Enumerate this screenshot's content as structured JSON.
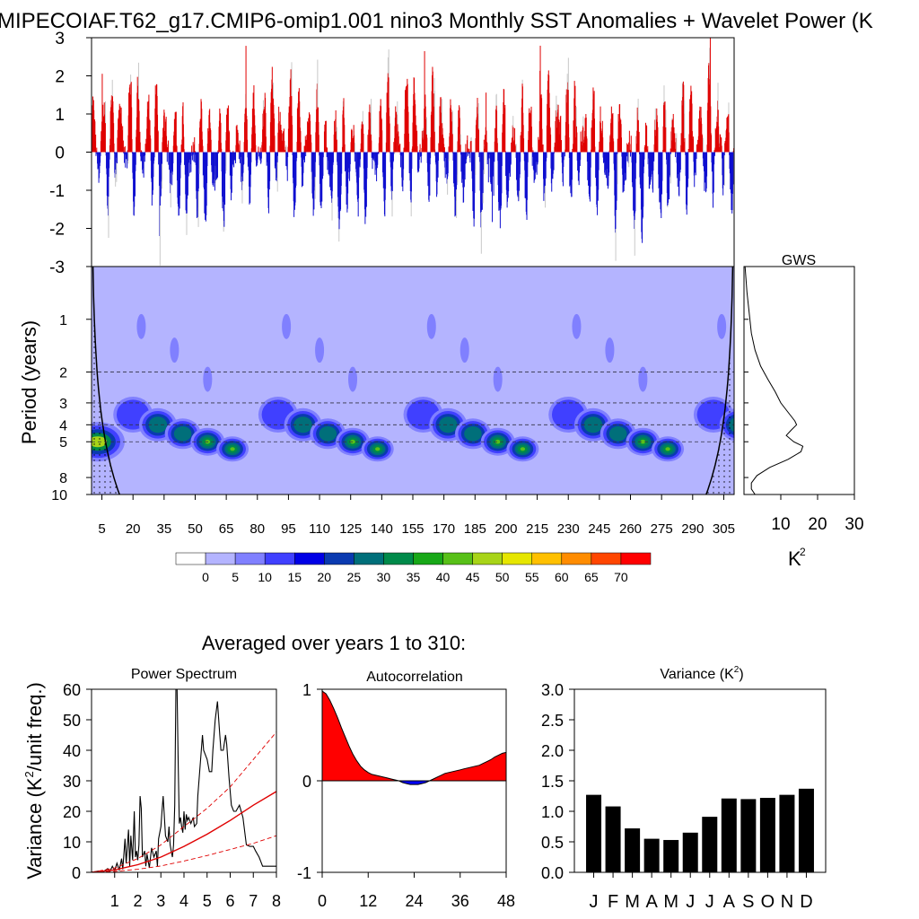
{
  "page_title": "MIPECOIAF.T62_g17.CMIP6-omip1.001 nino3 Monthly SST Anomalies + Wavelet Power (K",
  "averaged_label": "Averaged over years 1 to 310:",
  "chart_data": [
    {
      "id": "anomaly_timeseries",
      "type": "bar",
      "title": "MIPECOIAF.T62_g17.CMIP6-omip1.001 nino3 Monthly SST Anomalies + Wavelet Power (K",
      "ylim": [
        -3,
        3
      ],
      "yticks": [
        -3,
        -2,
        -1,
        0,
        1,
        2,
        3
      ],
      "xlim": [
        0,
        310
      ],
      "positive_color": "#e00000",
      "negative_color": "#1010d0",
      "note_colors": {
        "background_bars": "#c8c8c8"
      }
    },
    {
      "id": "wavelet_power",
      "type": "heatmap",
      "ylabel": "Period (years)",
      "xlim": [
        0,
        310
      ],
      "ylim_period": [
        0.5,
        10
      ],
      "log_y": true,
      "yticks": [
        1,
        2,
        3,
        4,
        5,
        8,
        10
      ],
      "xticks": [
        5,
        20,
        35,
        50,
        65,
        80,
        95,
        110,
        125,
        140,
        155,
        170,
        185,
        200,
        215,
        230,
        245,
        260,
        275,
        290,
        305
      ],
      "dashed_periods": [
        2,
        3,
        4,
        5
      ],
      "colorbar_levels": [
        "0",
        "5",
        "10",
        "15",
        "20",
        "25",
        "30",
        "35",
        "40",
        "45",
        "50",
        "55",
        "60",
        "65",
        "70"
      ],
      "colorbar_colors": [
        "#ffffff",
        "#b4b4ff",
        "#8080ff",
        "#4040ff",
        "#0000e6",
        "#0a3ab0",
        "#006f7a",
        "#008a4a",
        "#18a818",
        "#58c018",
        "#a8d418",
        "#e6e600",
        "#ffc000",
        "#ff8c00",
        "#ff4600",
        "#ff0000"
      ],
      "hotspot_periods": [
        3.5,
        4.0,
        4.5,
        5.0,
        5.5
      ],
      "hotspot_cycle_years": 70
    },
    {
      "id": "gws",
      "type": "line",
      "title": "GWS",
      "xlabel": "K",
      "xlabel_superscript": "2",
      "xticks": [
        10,
        20,
        30
      ],
      "xlim": [
        0,
        30
      ],
      "log_y": true,
      "ylim_period": [
        0.5,
        10
      ],
      "points": [
        [
          0.3,
          0.5
        ],
        [
          0.8,
          0.7
        ],
        [
          1.5,
          0.95
        ],
        [
          2.0,
          1.2
        ],
        [
          3.0,
          1.5
        ],
        [
          4.5,
          1.85
        ],
        [
          6.5,
          2.2
        ],
        [
          8.5,
          2.6
        ],
        [
          10.0,
          3.0
        ],
        [
          12.0,
          3.4
        ],
        [
          13.8,
          3.8
        ],
        [
          14.3,
          4.0
        ],
        [
          12.8,
          4.3
        ],
        [
          11.5,
          4.6
        ],
        [
          13.5,
          5.0
        ],
        [
          16.0,
          5.3
        ],
        [
          15.5,
          5.7
        ],
        [
          12.0,
          6.3
        ],
        [
          7.0,
          7.0
        ],
        [
          3.5,
          7.8
        ],
        [
          2.0,
          8.6
        ],
        [
          2.0,
          9.3
        ],
        [
          3.0,
          10.0
        ]
      ]
    },
    {
      "id": "power_spectrum",
      "type": "line",
      "title": "Power Spectrum",
      "ylabel": "Variance (K",
      "ylabel_superscript": "2",
      "ylabel_suffix": "/unit freq.)",
      "xlim": [
        0,
        8
      ],
      "ylim": [
        0,
        60
      ],
      "xticks": [
        1,
        2,
        3,
        4,
        5,
        6,
        7,
        8
      ],
      "yticks": [
        0,
        10,
        20,
        30,
        40,
        50,
        60
      ],
      "series": [
        {
          "style": "black",
          "points": [
            [
              0.0,
              0
            ],
            [
              0.3,
              0.4
            ],
            [
              0.5,
              0.2
            ],
            [
              0.7,
              1.2
            ],
            [
              0.8,
              0.3
            ],
            [
              0.9,
              2.0
            ],
            [
              1.0,
              0.6
            ],
            [
              1.1,
              3.0
            ],
            [
              1.2,
              0.8
            ],
            [
              1.3,
              4.5
            ],
            [
              1.35,
              1.0
            ],
            [
              1.45,
              11.0
            ],
            [
              1.5,
              3.0
            ],
            [
              1.6,
              14.0
            ],
            [
              1.65,
              2.0
            ],
            [
              1.7,
              12.0
            ],
            [
              1.78,
              4.0
            ],
            [
              1.85,
              20.0
            ],
            [
              1.9,
              5.0
            ],
            [
              1.95,
              7.0
            ],
            [
              2.0,
              4.0
            ],
            [
              2.05,
              9.0
            ],
            [
              2.1,
              25.0
            ],
            [
              2.15,
              21.0
            ],
            [
              2.2,
              5.0
            ],
            [
              2.3,
              7.0
            ],
            [
              2.35,
              2.0
            ],
            [
              2.4,
              6.0
            ],
            [
              2.5,
              1.5
            ],
            [
              2.6,
              8.0
            ],
            [
              2.7,
              5.0
            ],
            [
              2.8,
              7.0
            ],
            [
              2.85,
              2.0
            ],
            [
              2.9,
              11.0
            ],
            [
              3.0,
              15.0
            ],
            [
              3.05,
              20.0
            ],
            [
              3.1,
              25.0
            ],
            [
              3.2,
              12.0
            ],
            [
              3.3,
              10.0
            ],
            [
              3.35,
              15.0
            ],
            [
              3.4,
              9.0
            ],
            [
              3.45,
              7.0
            ],
            [
              3.5,
              5.0
            ],
            [
              3.55,
              9.0
            ],
            [
              3.6,
              22.0
            ],
            [
              3.65,
              60.0
            ],
            [
              3.7,
              60.0
            ],
            [
              3.75,
              35.0
            ],
            [
              3.8,
              16.0
            ],
            [
              3.85,
              18.0
            ],
            [
              3.9,
              15.0
            ],
            [
              3.95,
              13.0
            ],
            [
              4.0,
              20.0
            ],
            [
              4.05,
              14.0
            ],
            [
              4.1,
              19.0
            ],
            [
              4.15,
              17.0
            ],
            [
              4.2,
              18.0
            ],
            [
              4.3,
              16.0
            ],
            [
              4.4,
              18.0
            ],
            [
              4.45,
              15.0
            ],
            [
              4.55,
              16.0
            ],
            [
              4.6,
              25.0
            ],
            [
              4.7,
              35.0
            ],
            [
              4.8,
              45.0
            ],
            [
              4.85,
              40.0
            ],
            [
              4.95,
              38.0
            ],
            [
              5.0,
              37.0
            ],
            [
              5.1,
              33.0
            ],
            [
              5.2,
              33.0
            ],
            [
              5.25,
              40.0
            ],
            [
              5.35,
              50.0
            ],
            [
              5.45,
              56.0
            ],
            [
              5.55,
              45.0
            ],
            [
              5.6,
              40.0
            ],
            [
              5.7,
              40.0
            ],
            [
              5.8,
              45.0
            ],
            [
              5.85,
              42.0
            ],
            [
              5.95,
              31.0
            ],
            [
              6.05,
              22.0
            ],
            [
              6.15,
              20.0
            ],
            [
              6.25,
              20.0
            ],
            [
              6.4,
              22.0
            ],
            [
              6.55,
              18.0
            ],
            [
              6.7,
              9.0
            ],
            [
              6.85,
              8.5
            ],
            [
              7.0,
              8.5
            ],
            [
              7.1,
              7.0
            ],
            [
              7.25,
              5.0
            ],
            [
              7.4,
              2.0
            ],
            [
              8.0,
              2.0
            ]
          ]
        },
        {
          "style": "red-solid",
          "points": [
            [
              0,
              0
            ],
            [
              1,
              0.8
            ],
            [
              2,
              2.5
            ],
            [
              3,
              5.0
            ],
            [
              4,
              8.5
            ],
            [
              5,
              12.5
            ],
            [
              6,
              17.0
            ],
            [
              7,
              22.0
            ],
            [
              8,
              26.5
            ]
          ]
        },
        {
          "style": "red-dashed",
          "points": [
            [
              0,
              0
            ],
            [
              1,
              1.4
            ],
            [
              2,
              4.5
            ],
            [
              3,
              9.0
            ],
            [
              4,
              15.0
            ],
            [
              5,
              21.0
            ],
            [
              6,
              28.0
            ],
            [
              7,
              37.0
            ],
            [
              8,
              46.0
            ]
          ]
        },
        {
          "style": "red-dashed",
          "points": [
            [
              0,
              0
            ],
            [
              1,
              0.3
            ],
            [
              2,
              1.0
            ],
            [
              3,
              2.1
            ],
            [
              4,
              3.7
            ],
            [
              5,
              5.5
            ],
            [
              6,
              7.5
            ],
            [
              7,
              9.5
            ],
            [
              8,
              12.0
            ]
          ]
        }
      ]
    },
    {
      "id": "autocorrelation",
      "type": "area",
      "title": "Autocorrelation",
      "xlim": [
        0,
        48
      ],
      "ylim": [
        -1,
        1
      ],
      "xticks": [
        0,
        12,
        24,
        36,
        48
      ],
      "yticks": [
        -1,
        0,
        1
      ],
      "positive_color": "#ff0000",
      "negative_color": "#0000ff",
      "points": [
        [
          0,
          0.98
        ],
        [
          1,
          0.95
        ],
        [
          2,
          0.88
        ],
        [
          3,
          0.79
        ],
        [
          4,
          0.69
        ],
        [
          5,
          0.58
        ],
        [
          6,
          0.48
        ],
        [
          7,
          0.38
        ],
        [
          8,
          0.29
        ],
        [
          9,
          0.22
        ],
        [
          10,
          0.16
        ],
        [
          11,
          0.12
        ],
        [
          12,
          0.09
        ],
        [
          13,
          0.07
        ],
        [
          14,
          0.06
        ],
        [
          15,
          0.05
        ],
        [
          16,
          0.04
        ],
        [
          17,
          0.03
        ],
        [
          18,
          0.02
        ],
        [
          19,
          0.01
        ],
        [
          20,
          0.0
        ],
        [
          21,
          -0.02
        ],
        [
          22,
          -0.03
        ],
        [
          23,
          -0.04
        ],
        [
          24,
          -0.04
        ],
        [
          25,
          -0.04
        ],
        [
          26,
          -0.03
        ],
        [
          27,
          -0.02
        ],
        [
          28,
          0.0
        ],
        [
          29,
          0.02
        ],
        [
          30,
          0.04
        ],
        [
          31,
          0.06
        ],
        [
          32,
          0.08
        ],
        [
          33,
          0.09
        ],
        [
          34,
          0.1
        ],
        [
          35,
          0.11
        ],
        [
          36,
          0.12
        ],
        [
          37,
          0.13
        ],
        [
          38,
          0.14
        ],
        [
          39,
          0.15
        ],
        [
          40,
          0.16
        ],
        [
          41,
          0.17
        ],
        [
          42,
          0.19
        ],
        [
          43,
          0.21
        ],
        [
          44,
          0.23
        ],
        [
          45,
          0.26
        ],
        [
          46,
          0.28
        ],
        [
          47,
          0.3
        ],
        [
          48,
          0.31
        ]
      ]
    },
    {
      "id": "monthly_variance",
      "type": "bar",
      "title": "Variance (K",
      "title_superscript": "2",
      "title_suffix": ")",
      "categories": [
        "J",
        "F",
        "M",
        "A",
        "M",
        "J",
        "J",
        "A",
        "S",
        "O",
        "N",
        "D"
      ],
      "values": [
        1.27,
        1.08,
        0.72,
        0.55,
        0.53,
        0.65,
        0.91,
        1.21,
        1.2,
        1.22,
        1.27,
        1.37
      ],
      "ylim": [
        0,
        3
      ],
      "yticks": [
        "0.0",
        "0.5",
        "1.0",
        "1.5",
        "2.0",
        "2.5",
        "3.0"
      ],
      "bar_color": "#000000"
    }
  ]
}
